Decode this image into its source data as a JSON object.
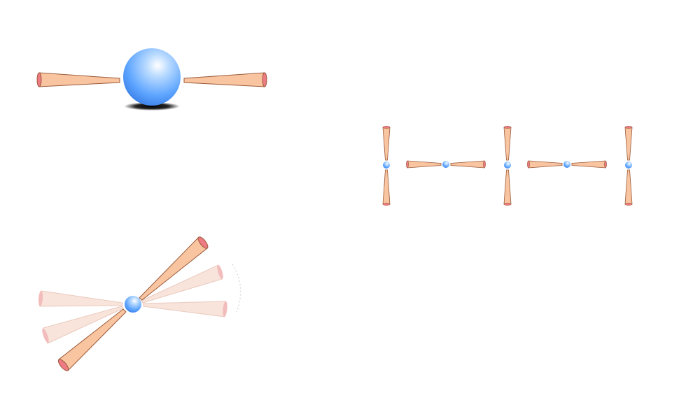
{
  "diagram": {
    "panels": [
      {
        "name": "single-spin",
        "description_visible": false
      },
      {
        "name": "spin-chain",
        "spin_count": 5
      },
      {
        "name": "spin-precession",
        "ghost_cones": 3
      }
    ]
  },
  "colors": {
    "background": "#ffffff",
    "sphere_light": "#e6f2ff",
    "sphere_mid": "#5ca4ff",
    "sphere_dark": "#2f6fd6",
    "cone_fill": "#f9c4a0",
    "cone_stroke": "#9a5a3a",
    "cone_end": "#ee7a84",
    "ghost_fill": "#f6dcd0",
    "ghost_end": "#f0a6a6",
    "shadow": "#000000"
  }
}
